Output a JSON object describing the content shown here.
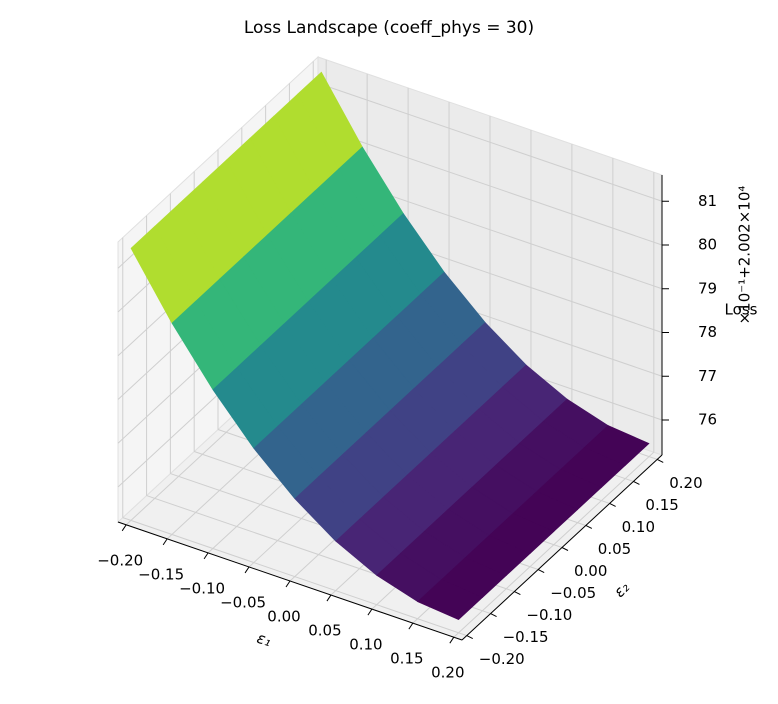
{
  "chart_data": {
    "type": "surface3d",
    "title": "Loss Landscape (coeff_phys = 30)",
    "xlabel": "ε₁",
    "ylabel": "ε₂",
    "zlabel": "Loss",
    "z_offset_label": "×10⁻¹+2.002×10⁴",
    "colormap": "viridis",
    "x": [
      -0.2,
      -0.15,
      -0.1,
      -0.05,
      0,
      0.05,
      0.1,
      0.15,
      0.2
    ],
    "y": [
      -0.2,
      -0.15,
      -0.1,
      -0.05,
      0,
      0.05,
      0.1,
      0.15,
      0.2
    ],
    "z": [
      [
        81.42,
        80.03,
        78.83,
        77.81,
        76.98,
        76.33,
        75.87,
        75.59,
        75.5
      ],
      [
        81.42,
        80.03,
        78.83,
        77.81,
        76.98,
        76.33,
        75.87,
        75.59,
        75.5
      ],
      [
        81.42,
        80.03,
        78.83,
        77.81,
        76.98,
        76.33,
        75.87,
        75.59,
        75.5
      ],
      [
        81.42,
        80.03,
        78.83,
        77.81,
        76.98,
        76.33,
        75.87,
        75.59,
        75.5
      ],
      [
        81.42,
        80.03,
        78.83,
        77.81,
        76.98,
        76.33,
        75.87,
        75.59,
        75.5
      ],
      [
        81.42,
        80.03,
        78.83,
        77.81,
        76.98,
        76.33,
        75.87,
        75.59,
        75.5
      ],
      [
        81.42,
        80.03,
        78.83,
        77.81,
        76.98,
        76.33,
        75.87,
        75.59,
        75.5
      ],
      [
        81.42,
        80.03,
        78.83,
        77.81,
        76.98,
        76.33,
        75.87,
        75.59,
        75.5
      ],
      [
        81.42,
        80.03,
        78.83,
        77.81,
        76.98,
        76.33,
        75.87,
        75.59,
        75.5
      ]
    ],
    "xlim": [
      -0.21,
      0.21
    ],
    "ylim": [
      -0.21,
      0.21
    ],
    "zlim": [
      75.2,
      81.6
    ],
    "xticks": [
      {
        "value": -0.2,
        "label": "−0.20"
      },
      {
        "value": -0.15,
        "label": "−0.15"
      },
      {
        "value": -0.1,
        "label": "−0.10"
      },
      {
        "value": -0.05,
        "label": "−0.05"
      },
      {
        "value": 0,
        "label": "0.00"
      },
      {
        "value": 0.05,
        "label": "0.05"
      },
      {
        "value": 0.1,
        "label": "0.10"
      },
      {
        "value": 0.15,
        "label": "0.15"
      },
      {
        "value": 0.2,
        "label": "0.20"
      }
    ],
    "yticks": [
      {
        "value": -0.2,
        "label": "−0.20"
      },
      {
        "value": -0.15,
        "label": "−0.15"
      },
      {
        "value": -0.1,
        "label": "−0.10"
      },
      {
        "value": -0.05,
        "label": "−0.05"
      },
      {
        "value": 0,
        "label": "0.00"
      },
      {
        "value": 0.05,
        "label": "0.05"
      },
      {
        "value": 0.1,
        "label": "0.10"
      },
      {
        "value": 0.15,
        "label": "0.15"
      },
      {
        "value": 0.2,
        "label": "0.20"
      }
    ],
    "zticks": [
      76,
      77,
      78,
      79,
      80,
      81
    ],
    "grid": true
  }
}
